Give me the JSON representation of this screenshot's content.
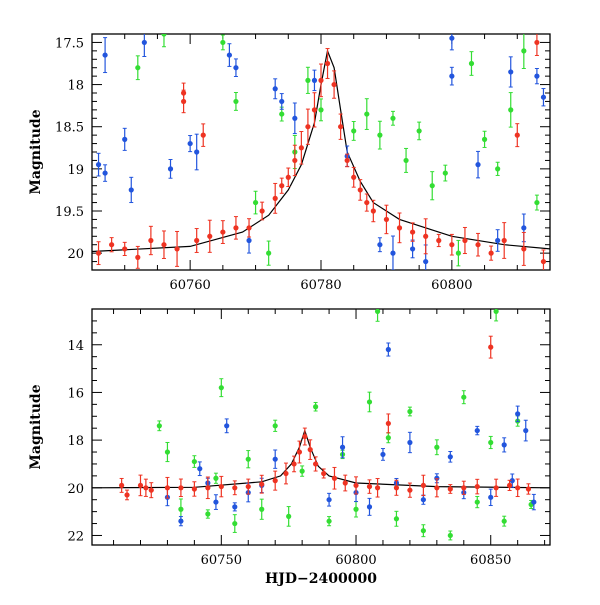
{
  "chart_data": [
    {
      "type": "scatter",
      "panel": "top",
      "title": "",
      "xlabel": "",
      "ylabel": "Magnitude",
      "xlim": [
        60745,
        60815
      ],
      "ylim": [
        20.2,
        17.4
      ],
      "y_inverted": true,
      "x_ticks": [
        60760,
        60780,
        60800
      ],
      "y_ticks": [
        17.5,
        18,
        18.5,
        19,
        19.5,
        20
      ],
      "model_curve": {
        "color": "#000000",
        "baseline": 20.0,
        "peak_x": 60781,
        "peak_mag": 17.6,
        "points": [
          [
            60745,
            19.98
          ],
          [
            60760,
            19.92
          ],
          [
            60768,
            19.75
          ],
          [
            60772,
            19.55
          ],
          [
            60775,
            19.25
          ],
          [
            60777,
            18.95
          ],
          [
            60779,
            18.45
          ],
          [
            60780,
            18.0
          ],
          [
            60781,
            17.6
          ],
          [
            60782,
            17.8
          ],
          [
            60783,
            18.3
          ],
          [
            60784,
            18.8
          ],
          [
            60786,
            19.15
          ],
          [
            60788,
            19.4
          ],
          [
            60792,
            19.6
          ],
          [
            60800,
            19.8
          ],
          [
            60808,
            19.9
          ],
          [
            60815,
            19.95
          ]
        ]
      },
      "series": [
        {
          "color": "#ee3322",
          "points": [
            [
              60746,
              20.0
            ],
            [
              60748,
              19.9
            ],
            [
              60750,
              19.95
            ],
            [
              60752,
              20.05
            ],
            [
              60754,
              19.85
            ],
            [
              60756,
              19.9
            ],
            [
              60758,
              19.95
            ],
            [
              60759,
              18.1
            ],
            [
              60759,
              18.2
            ],
            [
              60761,
              19.85
            ],
            [
              60762,
              18.6
            ],
            [
              60763,
              19.8
            ],
            [
              60765,
              19.75
            ],
            [
              60767,
              19.7
            ],
            [
              60769,
              19.7
            ],
            [
              60771,
              19.5
            ],
            [
              60773,
              19.35
            ],
            [
              60774,
              19.2
            ],
            [
              60775,
              19.1
            ],
            [
              60776,
              18.9
            ],
            [
              60777,
              18.75
            ],
            [
              60778,
              18.5
            ],
            [
              60779,
              18.3
            ],
            [
              60780,
              17.95
            ],
            [
              60781,
              17.75
            ],
            [
              60782,
              18.0
            ],
            [
              60783,
              18.5
            ],
            [
              60784,
              18.9
            ],
            [
              60785,
              19.1
            ],
            [
              60786,
              19.25
            ],
            [
              60787,
              19.4
            ],
            [
              60788,
              19.5
            ],
            [
              60790,
              19.6
            ],
            [
              60792,
              19.7
            ],
            [
              60794,
              19.75
            ],
            [
              60796,
              19.8
            ],
            [
              60798,
              19.85
            ],
            [
              60800,
              19.9
            ],
            [
              60802,
              19.85
            ],
            [
              60804,
              19.9
            ],
            [
              60806,
              20.0
            ],
            [
              60808,
              19.85
            ],
            [
              60810,
              18.6
            ],
            [
              60811,
              19.95
            ],
            [
              60813,
              17.5
            ],
            [
              60814,
              20.1
            ]
          ]
        },
        {
          "color": "#2255dd",
          "points": [
            [
              60746,
              18.95
            ],
            [
              60747,
              17.65
            ],
            [
              60747,
              19.05
            ],
            [
              60750,
              18.65
            ],
            [
              60751,
              19.25
            ],
            [
              60753,
              17.5
            ],
            [
              60757,
              19.0
            ],
            [
              60760,
              18.7
            ],
            [
              60761,
              18.8
            ],
            [
              60766,
              17.65
            ],
            [
              60767,
              17.8
            ],
            [
              60769,
              19.85
            ],
            [
              60773,
              18.05
            ],
            [
              60774,
              18.2
            ],
            [
              60776,
              18.4
            ],
            [
              60779,
              17.95
            ],
            [
              60784,
              18.85
            ],
            [
              60789,
              19.9
            ],
            [
              60791,
              20.0
            ],
            [
              60794,
              19.95
            ],
            [
              60796,
              20.1
            ],
            [
              60800,
              17.45
            ],
            [
              60800,
              17.9
            ],
            [
              60804,
              18.95
            ],
            [
              60807,
              19.85
            ],
            [
              60809,
              17.85
            ],
            [
              60811,
              19.7
            ],
            [
              60813,
              17.9
            ],
            [
              60814,
              18.15
            ]
          ]
        },
        {
          "color": "#33dd33",
          "points": [
            [
              60752,
              17.8
            ],
            [
              60756,
              17.4
            ],
            [
              60765,
              17.5
            ],
            [
              60767,
              18.2
            ],
            [
              60770,
              19.4
            ],
            [
              60772,
              20.0
            ],
            [
              60774,
              18.35
            ],
            [
              60776,
              18.8
            ],
            [
              60778,
              17.95
            ],
            [
              60780,
              18.3
            ],
            [
              60785,
              18.55
            ],
            [
              60787,
              18.35
            ],
            [
              60789,
              18.6
            ],
            [
              60791,
              18.4
            ],
            [
              60793,
              18.9
            ],
            [
              60795,
              18.55
            ],
            [
              60797,
              19.2
            ],
            [
              60799,
              19.05
            ],
            [
              60801,
              20.0
            ],
            [
              60803,
              17.75
            ],
            [
              60805,
              18.65
            ],
            [
              60807,
              19.0
            ],
            [
              60809,
              18.3
            ],
            [
              60811,
              17.6
            ],
            [
              60813,
              19.4
            ]
          ]
        }
      ]
    },
    {
      "type": "scatter",
      "panel": "bottom",
      "title": "",
      "xlabel": "HJD−2400000",
      "ylabel": "Magnitude",
      "xlim": [
        60702,
        60872
      ],
      "ylim": [
        22.4,
        12.5
      ],
      "y_inverted": true,
      "x_ticks": [
        60750,
        60800,
        60850
      ],
      "y_ticks": [
        14,
        16,
        18,
        20,
        22
      ],
      "model_curve": {
        "color": "#000000",
        "baseline": 20.0,
        "peak_x": 60781,
        "peak_mag": 17.6,
        "points": [
          [
            60702,
            20.0
          ],
          [
            60740,
            19.98
          ],
          [
            60765,
            19.75
          ],
          [
            60772,
            19.5
          ],
          [
            60776,
            19.0
          ],
          [
            60779,
            18.3
          ],
          [
            60781,
            17.6
          ],
          [
            60783,
            18.3
          ],
          [
            60786,
            19.1
          ],
          [
            60790,
            19.5
          ],
          [
            60800,
            19.8
          ],
          [
            60830,
            19.95
          ],
          [
            60872,
            20.0
          ]
        ]
      },
      "series": [
        {
          "color": "#ee3322",
          "points": [
            [
              60713,
              19.9
            ],
            [
              60715,
              20.3
            ],
            [
              60720,
              19.9
            ],
            [
              60722,
              20.0
            ],
            [
              60724,
              20.1
            ],
            [
              60730,
              20.0
            ],
            [
              60735,
              20.0
            ],
            [
              60740,
              20.05
            ],
            [
              60745,
              20.0
            ],
            [
              60750,
              19.95
            ],
            [
              60755,
              20.0
            ],
            [
              60760,
              19.95
            ],
            [
              60765,
              19.85
            ],
            [
              60770,
              19.7
            ],
            [
              60774,
              19.4
            ],
            [
              60777,
              19.0
            ],
            [
              60779,
              18.5
            ],
            [
              60781,
              17.85
            ],
            [
              60783,
              18.4
            ],
            [
              60785,
              19.0
            ],
            [
              60788,
              19.4
            ],
            [
              60792,
              19.6
            ],
            [
              60796,
              19.8
            ],
            [
              60800,
              19.9
            ],
            [
              60805,
              19.95
            ],
            [
              60808,
              20.0
            ],
            [
              60812,
              17.3
            ],
            [
              60815,
              20.0
            ],
            [
              60820,
              20.1
            ],
            [
              60825,
              19.9
            ],
            [
              60830,
              20.0
            ],
            [
              60835,
              20.05
            ],
            [
              60840,
              20.0
            ],
            [
              60845,
              19.95
            ],
            [
              60850,
              14.1
            ],
            [
              60852,
              20.0
            ],
            [
              60857,
              19.9
            ],
            [
              60860,
              20.0
            ],
            [
              60864,
              20.05
            ]
          ]
        },
        {
          "color": "#2255dd",
          "points": [
            [
              60730,
              20.4
            ],
            [
              60735,
              21.4
            ],
            [
              60742,
              19.2
            ],
            [
              60745,
              19.8
            ],
            [
              60748,
              20.6
            ],
            [
              60752,
              17.4
            ],
            [
              60755,
              20.8
            ],
            [
              60760,
              20.2
            ],
            [
              60765,
              19.9
            ],
            [
              60770,
              18.8
            ],
            [
              60790,
              20.5
            ],
            [
              60795,
              18.3
            ],
            [
              60800,
              20.2
            ],
            [
              60805,
              20.8
            ],
            [
              60810,
              18.6
            ],
            [
              60812,
              14.2
            ],
            [
              60815,
              19.8
            ],
            [
              60820,
              18.1
            ],
            [
              60825,
              20.5
            ],
            [
              60830,
              19.6
            ],
            [
              60835,
              18.7
            ],
            [
              60840,
              20.2
            ],
            [
              60845,
              17.6
            ],
            [
              60850,
              20.4
            ],
            [
              60855,
              18.2
            ],
            [
              60858,
              19.7
            ],
            [
              60860,
              16.9
            ],
            [
              60863,
              17.6
            ],
            [
              60866,
              20.6
            ]
          ]
        },
        {
          "color": "#33dd33",
          "points": [
            [
              60727,
              17.4
            ],
            [
              60730,
              18.5
            ],
            [
              60735,
              20.9
            ],
            [
              60740,
              18.9
            ],
            [
              60745,
              21.1
            ],
            [
              60748,
              19.6
            ],
            [
              60750,
              15.8
            ],
            [
              60755,
              21.5
            ],
            [
              60760,
              18.8
            ],
            [
              60765,
              20.9
            ],
            [
              60770,
              17.4
            ],
            [
              60775,
              21.2
            ],
            [
              60780,
              19.3
            ],
            [
              60785,
              16.6
            ],
            [
              60790,
              21.4
            ],
            [
              60795,
              18.6
            ],
            [
              60800,
              20.9
            ],
            [
              60805,
              16.4
            ],
            [
              60808,
              12.6
            ],
            [
              60812,
              17.9
            ],
            [
              60815,
              21.3
            ],
            [
              60820,
              16.8
            ],
            [
              60825,
              21.8
            ],
            [
              60830,
              18.3
            ],
            [
              60835,
              22.0
            ],
            [
              60840,
              16.2
            ],
            [
              60845,
              20.6
            ],
            [
              60850,
              18.1
            ],
            [
              60852,
              12.6
            ],
            [
              60855,
              21.4
            ],
            [
              60860,
              17.2
            ],
            [
              60865,
              20.7
            ]
          ]
        }
      ]
    }
  ]
}
